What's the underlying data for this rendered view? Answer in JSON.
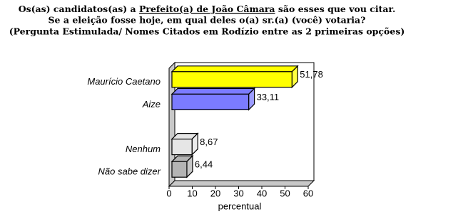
{
  "chart_data": {
    "type": "bar",
    "orientation": "horizontal",
    "title_line1": [
      "Os(as) candidatos(as) a ",
      "Prefeito(a) de João Câmara",
      " são esses que vou citar."
    ],
    "title_line2": "Se a eleição fosse hoje, em qual deles o(a) sr.(a) (você) votaria?",
    "title_line3": "(Pergunta Estimulada/ Nomes Citados em Rodízio entre as 2 primeiras opções)",
    "categories": [
      "Maurício Caetano",
      "Aize",
      null,
      "Nenhum",
      "Não sabe dizer"
    ],
    "values": [
      51.78,
      33.11,
      null,
      8.67,
      6.44
    ],
    "value_labels": [
      "51,78",
      "33,11",
      null,
      "8,67",
      "6,44"
    ],
    "colors": [
      "#ffff00",
      "#7b7bff",
      null,
      "#e6e6e6",
      "#b4b4b4"
    ],
    "xlabel": "percentual",
    "xlim": [
      0,
      60
    ],
    "xticks": [
      0,
      10,
      20,
      30,
      40,
      50,
      60
    ]
  }
}
